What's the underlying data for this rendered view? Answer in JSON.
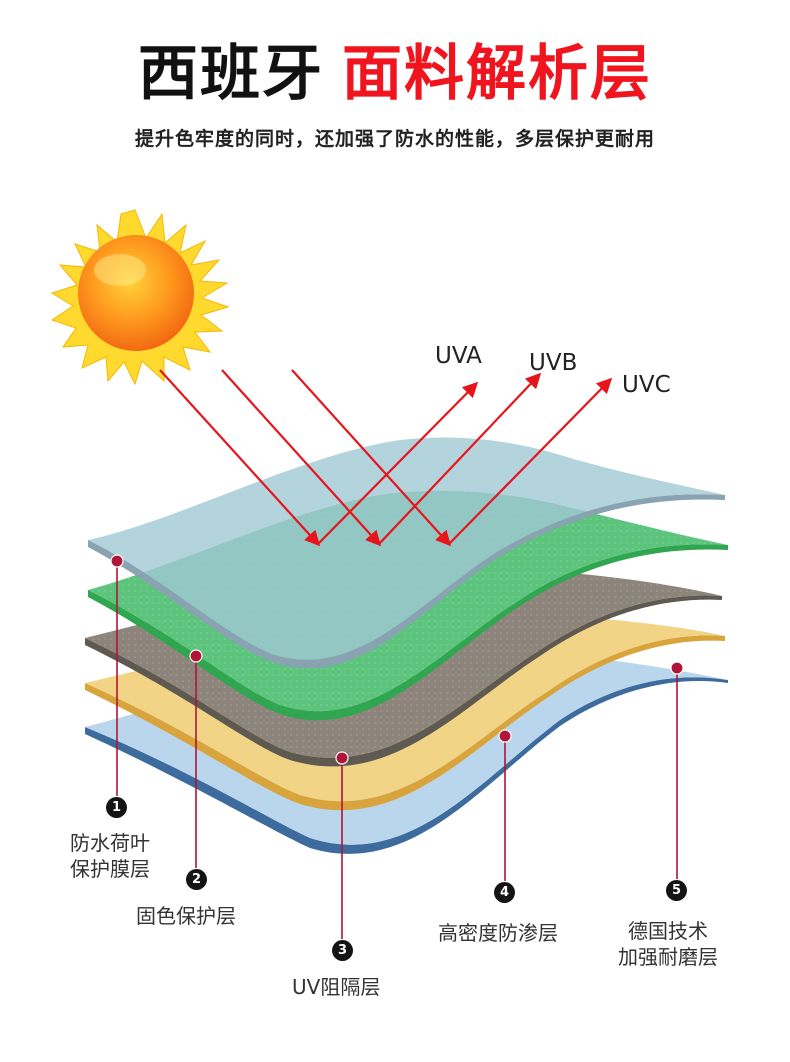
{
  "header": {
    "title_black": "西班牙",
    "title_red": "面料解析层",
    "subtitle": "提升色牢度的同时，还加强了防水的性能，多层保护更耐用"
  },
  "rays": {
    "uva": "UVA",
    "uvb": "UVB",
    "uvc": "UVC",
    "color": "#e8141c"
  },
  "layers": [
    {
      "number": "1",
      "label_line1": "防水荷叶",
      "label_line2": "保护膜层",
      "color": "#a9ccd6"
    },
    {
      "number": "2",
      "label_line1": "固色保护层",
      "label_line2": "",
      "color": "#5dc47e"
    },
    {
      "number": "3",
      "label_line1": "UV阻隔层",
      "label_line2": "",
      "color": "#8d857b"
    },
    {
      "number": "4",
      "label_line1": "高密度防渗层",
      "label_line2": "",
      "color": "#f2d487"
    },
    {
      "number": "5",
      "label_line1": "德国技术",
      "label_line2": "加强耐磨层",
      "color": "#b9d6ec"
    }
  ],
  "pointer_color": "#b01436"
}
